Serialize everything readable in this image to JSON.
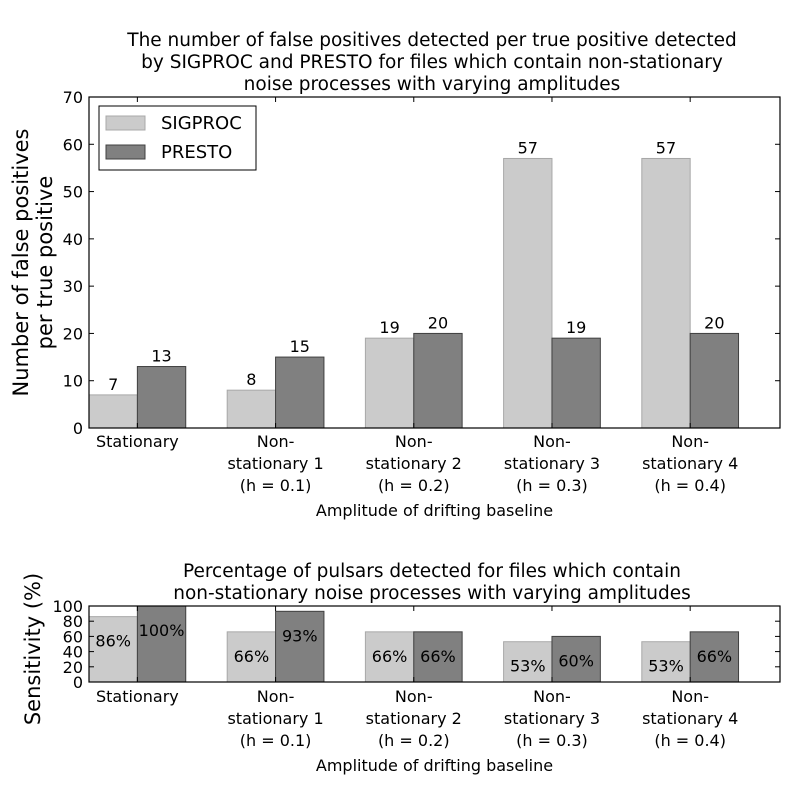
{
  "colors": {
    "sigproc": "#cbcbcb",
    "presto": "#808080",
    "sigproc_edge": "#a8a8a8",
    "presto_edge": "#404040"
  },
  "chart_data": [
    {
      "type": "bar",
      "title": [
        "The number of false positives detected per true positive detected",
        "by SIGPROC and PRESTO for files which contain non-stationary",
        "noise processes with varying amplitudes"
      ],
      "xlabel": "Amplitude of drifting baseline",
      "ylabel": [
        "Number of false positives",
        "per true positive"
      ],
      "ylim": [
        0,
        70
      ],
      "yticks": [
        "0",
        "10",
        "20",
        "30",
        "40",
        "50",
        "60",
        "70"
      ],
      "categories": [
        [
          "Stationary"
        ],
        [
          "Non-",
          "stationary 1",
          "(h = 0.1)"
        ],
        [
          "Non-",
          "stationary 2",
          "(h = 0.2)"
        ],
        [
          "Non-",
          "stationary 3",
          "(h = 0.3)"
        ],
        [
          "Non-",
          "stationary 4",
          "(h = 0.4)"
        ]
      ],
      "series": [
        {
          "name": "SIGPROC",
          "values": [
            7,
            8,
            19,
            57,
            57
          ],
          "labels": [
            "7",
            "8",
            "19",
            "57",
            "57"
          ]
        },
        {
          "name": "PRESTO",
          "values": [
            13,
            15,
            20,
            19,
            20
          ],
          "labels": [
            "13",
            "15",
            "20",
            "19",
            "20"
          ]
        }
      ],
      "legend": "top-left"
    },
    {
      "type": "bar",
      "title": [
        "Percentage of pulsars detected for files which contain",
        "non-stationary noise processes with varying amplitudes"
      ],
      "xlabel": "Amplitude of drifting baseline",
      "ylabel": [
        "Sensitivity (%)"
      ],
      "ylim": [
        0,
        100
      ],
      "yticks": [
        "0",
        "20",
        "40",
        "60",
        "80",
        "100"
      ],
      "categories": [
        [
          "Stationary"
        ],
        [
          "Non-",
          "stationary 1",
          "(h = 0.1)"
        ],
        [
          "Non-",
          "stationary 2",
          "(h = 0.2)"
        ],
        [
          "Non-",
          "stationary 3",
          "(h = 0.3)"
        ],
        [
          "Non-",
          "stationary 4",
          "(h = 0.4)"
        ]
      ],
      "series": [
        {
          "name": "SIGPROC",
          "values": [
            86,
            66,
            66,
            53,
            53
          ],
          "labels": [
            "86%",
            "66%",
            "66%",
            "53%",
            "53%"
          ]
        },
        {
          "name": "PRESTO",
          "values": [
            100,
            93,
            66,
            60,
            66
          ],
          "labels": [
            "100%",
            "93%",
            "66%",
            "60%",
            "66%"
          ]
        }
      ]
    }
  ]
}
